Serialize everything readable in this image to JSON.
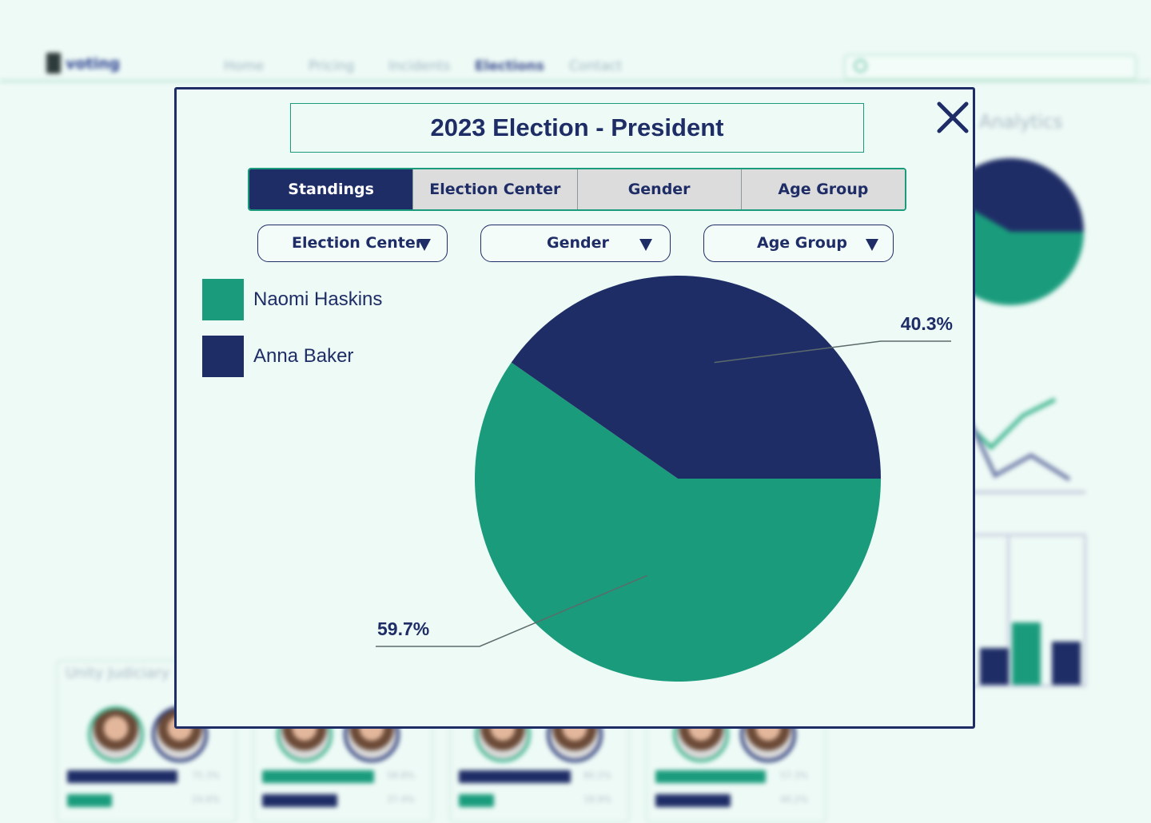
{
  "background": {
    "brand": "voting",
    "nav": [
      "Home",
      "Pricing",
      "Incidents",
      "Elections",
      "Contact"
    ],
    "active_nav": "Elections",
    "analytics_label": "Analytics",
    "card_title": "Unity Judiciary",
    "cards": [
      {
        "bars": [
          "75.3%",
          "24.6%"
        ]
      },
      {
        "bars": [
          "58.8%",
          "37.4%"
        ]
      },
      {
        "bars": [
          "80.2%",
          "18.9%"
        ]
      },
      {
        "bars": [
          "57.3%",
          "40.2%"
        ]
      }
    ]
  },
  "modal": {
    "title": "2023 Election - President",
    "close_icon": "close-icon",
    "tabs": [
      "Standings",
      "Election Center",
      "Gender",
      "Age Group"
    ],
    "active_tab": "Standings",
    "filters": [
      {
        "label": "Election Center"
      },
      {
        "label": "Gender"
      },
      {
        "label": "Age Group"
      }
    ]
  },
  "colors": {
    "navy": "#1f2d67",
    "green": "#1a9c7c",
    "background": "#eefaf6"
  },
  "chart_data": {
    "type": "pie",
    "title": "",
    "series": [
      {
        "name": "Naomi Haskins",
        "value": 59.7,
        "label": "59.7%",
        "color": "#1a9c7c"
      },
      {
        "name": "Anna Baker",
        "value": 40.3,
        "label": "40.3%",
        "color": "#1f2d67"
      }
    ],
    "legend_position": "top-left"
  }
}
